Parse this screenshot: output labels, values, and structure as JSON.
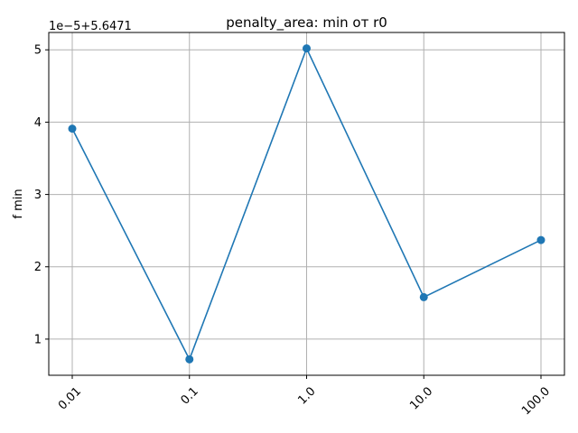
{
  "chart_data": {
    "type": "line",
    "title": "penalty_area: min от r0",
    "xlabel": "",
    "ylabel": "f min",
    "y_offset_text": "1e−5+5.6471",
    "categories": [
      "0.01",
      "0.1",
      "1.0",
      "10.0",
      "100.0"
    ],
    "series": [
      {
        "values": [
          3.91,
          0.72,
          5.02,
          1.58,
          2.37
        ],
        "color": "#1f77b4",
        "marker": "circle"
      }
    ],
    "yticks": [
      "1",
      "2",
      "3",
      "4",
      "5"
    ],
    "ylim": [
      0.5,
      5.24
    ],
    "grid": true,
    "x_tick_rotation": 45
  }
}
